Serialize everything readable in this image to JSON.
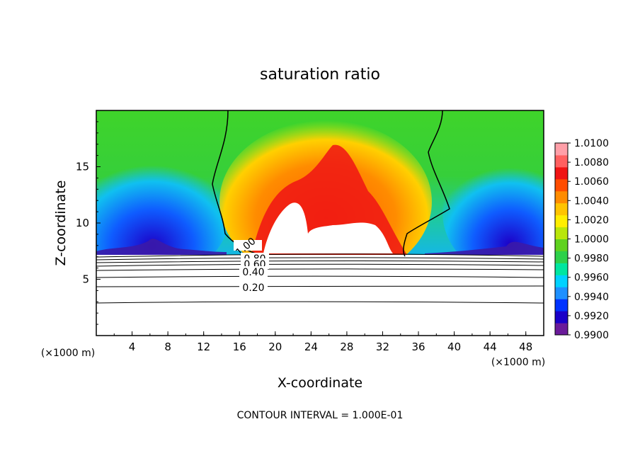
{
  "chart_data": {
    "type": "heatmap",
    "title": "saturation ratio",
    "xlabel": "X-coordinate",
    "ylabel": "Z-coordinate",
    "x_unit": "(×1000 m)",
    "z_unit": "(×1000 m)",
    "xlim": [
      0,
      50
    ],
    "ylim": [
      0,
      20
    ],
    "x_ticks": [
      "4",
      "8",
      "12",
      "16",
      "20",
      "24",
      "28",
      "32",
      "36",
      "40",
      "44",
      "48"
    ],
    "y_ticks": [
      "5",
      "10",
      "15"
    ],
    "colorbar": {
      "range": [
        0.99,
        1.01
      ],
      "tick_labels": [
        "1.0100",
        "1.0080",
        "1.0060",
        "1.0040",
        "1.0020",
        "1.0000",
        "0.9980",
        "0.9960",
        "0.9940",
        "0.9920",
        "0.9900"
      ],
      "colors": [
        "#6a1b9a",
        "#1a00c8",
        "#0033ff",
        "#1e90ff",
        "#00d2ff",
        "#00e6a0",
        "#2ed14a",
        "#5fd21f",
        "#b9e60a",
        "#ffee00",
        "#ffc400",
        "#ff8c00",
        "#ff4d00",
        "#f01414",
        "#ff6060",
        "#ff9fa8"
      ]
    },
    "contour_labels": [
      "1.00",
      "0.80",
      "0.60",
      "0.40",
      "0.20"
    ],
    "contour_interval_text": "CONTOUR INTERVAL = 1.000E-01",
    "grid": false,
    "legend": "colorbar right"
  }
}
